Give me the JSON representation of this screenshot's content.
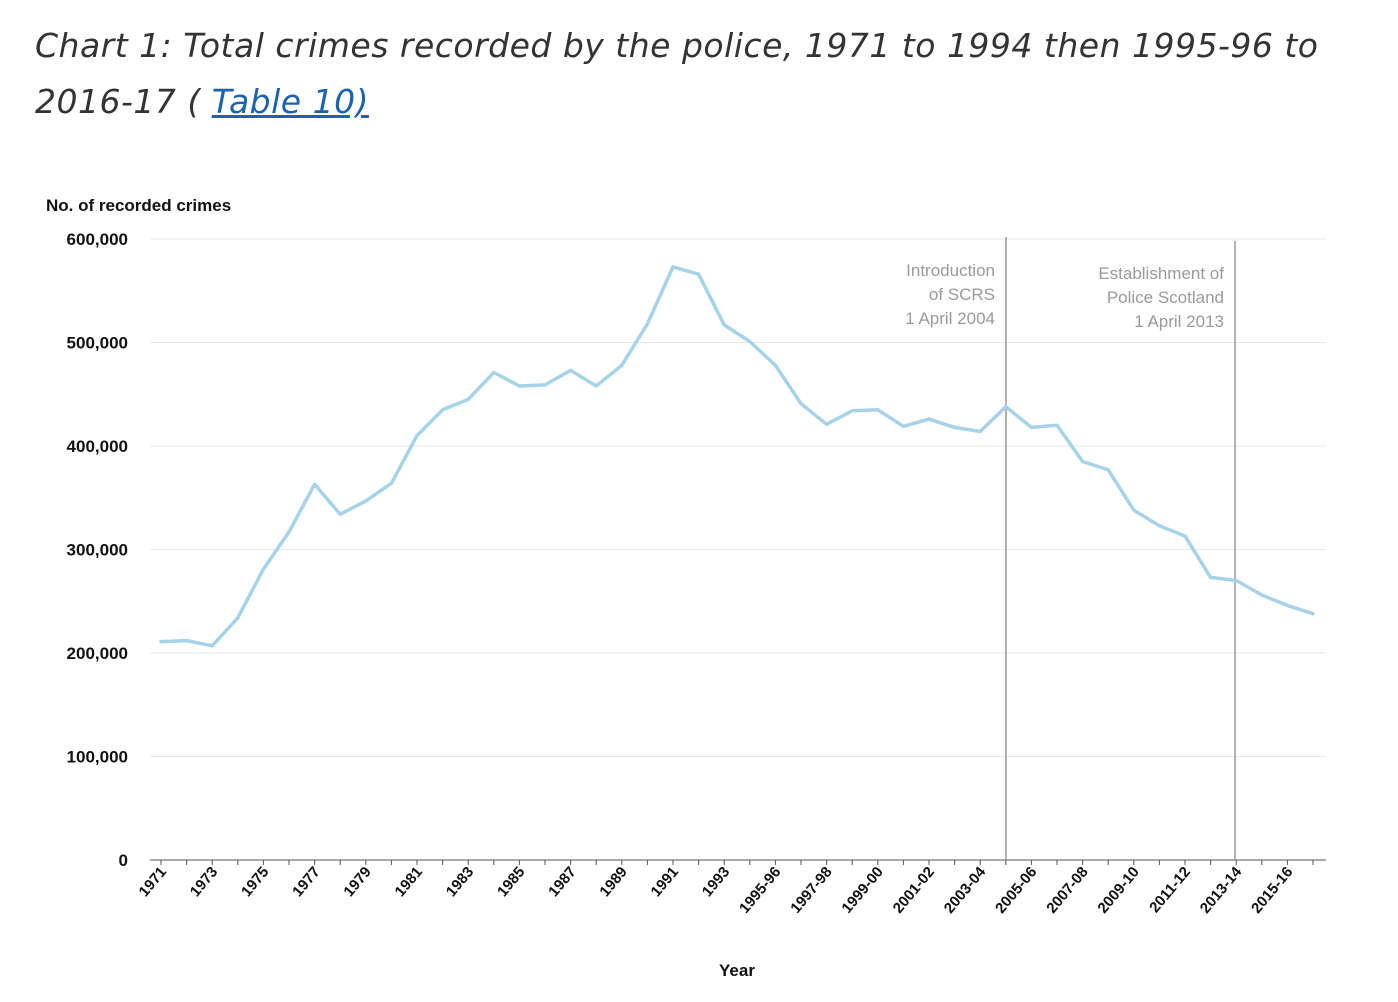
{
  "title": {
    "prefix": "Chart 1: Total crimes recorded by the police, 1971 to 1994 then 1995-96 to 2016-17 ( ",
    "link_label": "Table 10)"
  },
  "chart_data": {
    "type": "line",
    "ylabel": "No. of recorded crimes",
    "xlabel": "Year",
    "ylim": [
      0,
      600000
    ],
    "yticks": [
      0,
      100000,
      200000,
      300000,
      400000,
      500000,
      600000
    ],
    "ytick_labels": [
      "0",
      "100,000",
      "200,000",
      "300,000",
      "400,000",
      "500,000",
      "600,000"
    ],
    "grid": true,
    "categories": [
      "1971",
      "1972",
      "1973",
      "1974",
      "1975",
      "1976",
      "1977",
      "1978",
      "1979",
      "1980",
      "1981",
      "1982",
      "1983",
      "1984",
      "1985",
      "1986",
      "1987",
      "1988",
      "1989",
      "1990",
      "1991",
      "1992",
      "1993",
      "1994",
      "1995-96",
      "1996-97",
      "1997-98",
      "1998-99",
      "1999-00",
      "2000-01",
      "2001-02",
      "2002-03",
      "2003-04",
      "2004-05",
      "2005-06",
      "2006-07",
      "2007-08",
      "2008-09",
      "2009-10",
      "2010-11",
      "2011-12",
      "2012-13",
      "2013-14",
      "2014-15",
      "2015-16",
      "2016-17"
    ],
    "xtick_labels": [
      "1971",
      "1973",
      "1975",
      "1977",
      "1979",
      "1981",
      "1983",
      "1985",
      "1987",
      "1989",
      "1991",
      "1993",
      "1995-96",
      "1997-98",
      "1999-00",
      "2001-02",
      "2003-04",
      "2005-06",
      "2007-08",
      "2009-10",
      "2011-12",
      "2013-14",
      "2015-16"
    ],
    "series": [
      {
        "color": "#a6d3e8",
        "values": [
          211000,
          212000,
          207000,
          234000,
          281000,
          317000,
          363000,
          334000,
          347000,
          364000,
          410000,
          435000,
          445000,
          471000,
          458000,
          459000,
          473000,
          458000,
          478000,
          518000,
          573000,
          566000,
          517000,
          501000,
          478000,
          441000,
          421000,
          434000,
          435000,
          419000,
          426000,
          418000,
          414000,
          438000,
          418000,
          420000,
          385000,
          377000,
          338000,
          323000,
          313000,
          273000,
          270000,
          256000,
          246000,
          238000
        ]
      }
    ],
    "annotations": [
      {
        "after_category": "2003-04",
        "lines": [
          "Introduction",
          "of SCRS",
          "1 April 2004"
        ]
      },
      {
        "after_category": "2012-13",
        "lines": [
          "Establishment  of",
          "Police Scotland",
          "1 April 2013"
        ]
      }
    ]
  }
}
